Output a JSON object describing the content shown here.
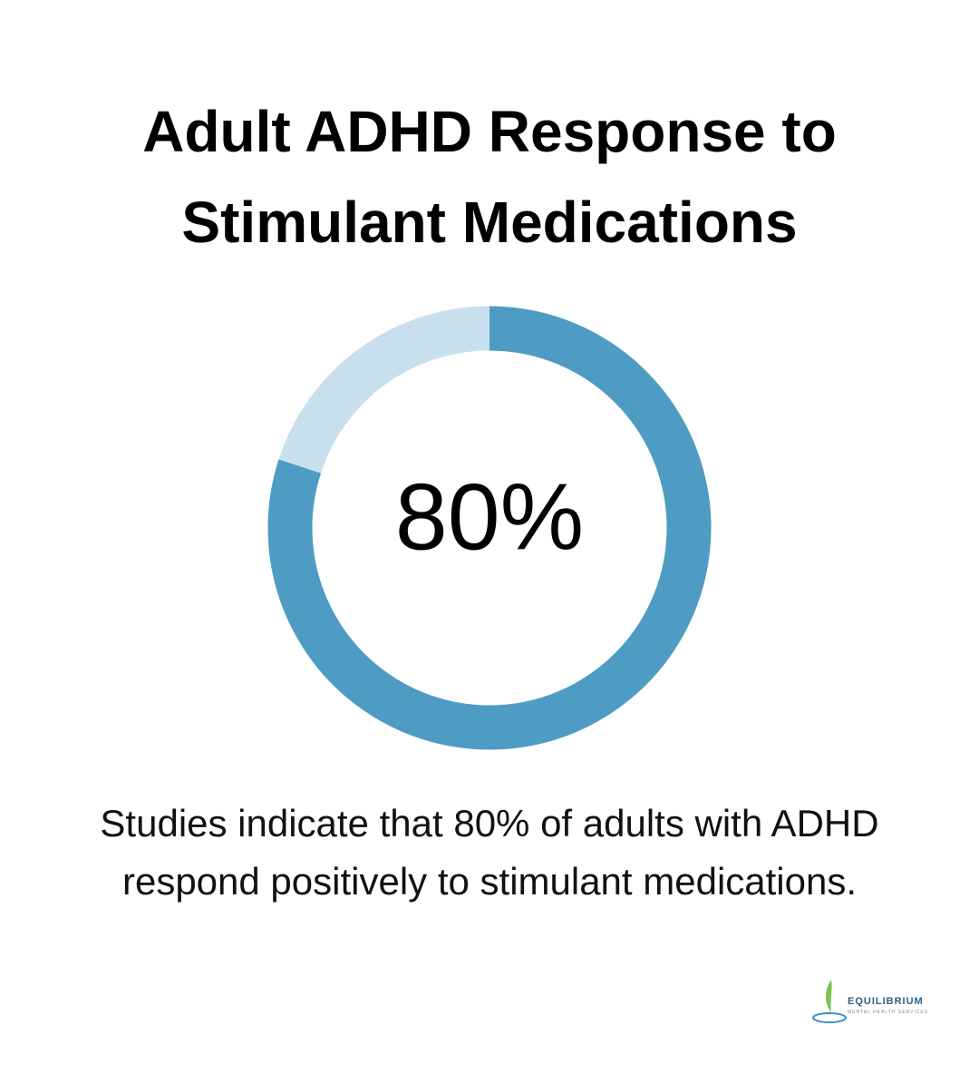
{
  "chart_data": {
    "type": "donut",
    "title": "Adult ADHD Response to Stimulant Medications",
    "values": [
      80,
      20
    ],
    "value_labels": [
      "80%",
      null
    ],
    "colors": [
      "#4e9cc3",
      "#c8e0ed"
    ],
    "caption": "Studies indicate that 80% of adults with ADHD respond positively to stimulant medications."
  },
  "logo": {
    "name": "EQUILIBRIUM",
    "tagline": "MENTAL HEALTH SERVICES"
  }
}
